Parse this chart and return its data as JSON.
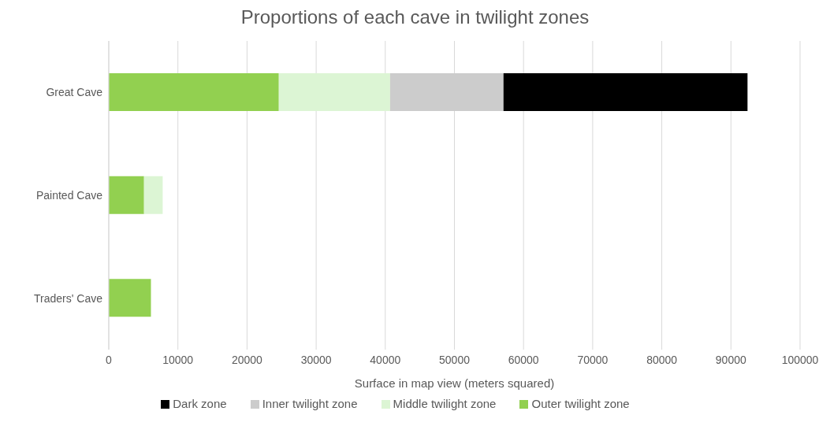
{
  "chart_data": {
    "type": "bar",
    "orientation": "horizontal",
    "stacked": true,
    "title": "Proportions of each cave in twilight zones",
    "xlabel": "Surface in map view (meters squared)",
    "categories": [
      "Great Cave",
      "Painted Cave",
      "Traders' Cave"
    ],
    "series": [
      {
        "name": "Outer twilight zone",
        "color": "#92d050",
        "values": [
          24600,
          5100,
          6100
        ]
      },
      {
        "name": "Middle twilight zone",
        "color": "#dcf5d4",
        "values": [
          16100,
          2700,
          null
        ]
      },
      {
        "name": "Inner twilight zone",
        "color": "#cccccc",
        "values": [
          16400,
          null,
          null
        ]
      },
      {
        "name": "Dark zone",
        "color": "#000000",
        "values": [
          35300,
          null,
          null
        ]
      }
    ],
    "xlim": [
      0,
      100000
    ],
    "xticks": [
      0,
      10000,
      20000,
      30000,
      40000,
      50000,
      60000,
      70000,
      80000,
      90000,
      100000
    ],
    "grid": "x",
    "legend": "bottom"
  }
}
